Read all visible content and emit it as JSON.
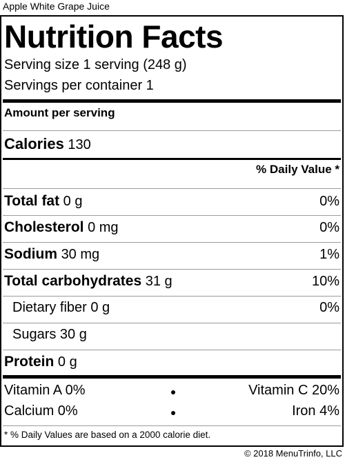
{
  "product_name": "Apple White Grape Juice",
  "title": "Nutrition Facts",
  "serving_size": "Serving size 1 serving (248 g)",
  "servings_per_container": "Servings per container 1",
  "amount_per_serving": "Amount per serving",
  "calories": {
    "label": "Calories",
    "value": "130"
  },
  "daily_value_header": "% Daily Value *",
  "nutrients": [
    {
      "name": "Total fat",
      "amount": "0 g",
      "dv": "0%"
    },
    {
      "name": "Cholesterol",
      "amount": "0 mg",
      "dv": "0%"
    },
    {
      "name": "Sodium",
      "amount": "30 mg",
      "dv": "1%"
    },
    {
      "name": "Total carbohydrates",
      "amount": "31 g",
      "dv": "10%"
    },
    {
      "name": "Dietary fiber 0 g",
      "amount": "",
      "dv": "0%"
    },
    {
      "name": "Sugars 30 g",
      "amount": "",
      "dv": ""
    },
    {
      "name": "Protein",
      "amount": "0 g",
      "dv": ""
    }
  ],
  "vitamins": {
    "vitamin_a": "Vitamin A 0%",
    "vitamin_c": "Vitamin C 20%",
    "calcium": "Calcium 0%",
    "iron": "Iron 4%"
  },
  "footnote": "* % Daily Values are based on a 2000 calorie diet.",
  "copyright": "© 2018 MenuTrinfo, LLC"
}
